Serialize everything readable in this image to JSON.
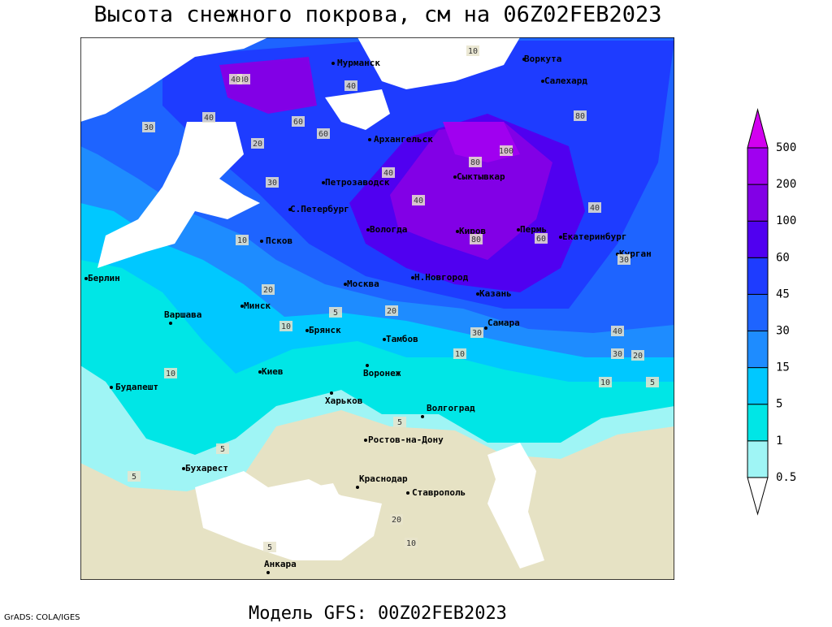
{
  "title": "Высота снежного покрова, см на 06Z02FEB2023",
  "footer": "Модель GFS: 00Z02FEB2023",
  "credit": "GrADS: COLA/IGES",
  "cities": [
    "Мурманск",
    "Воркута",
    "Салехард",
    "Архангельск",
    "Сыктывкар",
    "Петрозаводск",
    "С.Петербург",
    "Вологда",
    "Киров",
    "Пермь",
    "Екатеринбург",
    "Курган",
    "Псков",
    "Москва",
    "Н.Новгород",
    "Казань",
    "Берлин",
    "Варшава",
    "Минск",
    "Брянск",
    "Тамбов",
    "Самара",
    "Киев",
    "Воронеж",
    "Будапешт",
    "Харьков",
    "Волгоград",
    "Ростов-на-Дону",
    "Бухарест",
    "Краснодар",
    "Ставрополь",
    "Анкара"
  ],
  "contour_labels": [
    10,
    80,
    40,
    30,
    40,
    40,
    60,
    60,
    80,
    100,
    80,
    40,
    80,
    60,
    40,
    30,
    10,
    20,
    30,
    40,
    20,
    10,
    5,
    10,
    20,
    5,
    30,
    10,
    40,
    30,
    20,
    5,
    5,
    5,
    10,
    5,
    20,
    10
  ],
  "colorbar": {
    "levels": [
      0.5,
      1,
      5,
      15,
      30,
      45,
      60,
      100,
      200,
      500
    ],
    "colors": [
      "#ffffff",
      "#9ff5f5",
      "#00e6e6",
      "#00c8ff",
      "#1e8cff",
      "#1e64ff",
      "#1e3cff",
      "#5000f0",
      "#8200e6",
      "#a000f0",
      "#d200f0"
    ]
  }
}
